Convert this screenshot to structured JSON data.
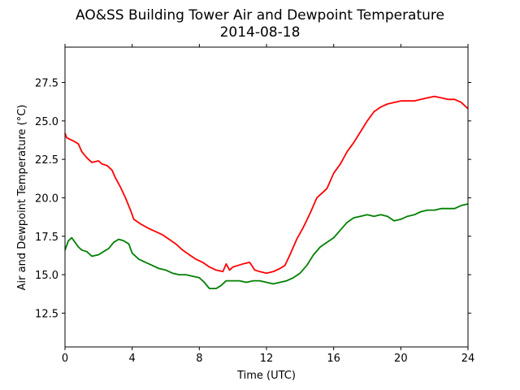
{
  "chart_data": {
    "type": "line",
    "title": "AO&SS Building Tower Air and Dewpoint Temperature",
    "subtitle": "2014-08-18",
    "xlabel": "Time (UTC)",
    "ylabel": "Air and Dewpoint Temperature (°C)",
    "xlim": [
      0,
      24
    ],
    "ylim": [
      10.3,
      29.8
    ],
    "xticks": [
      0,
      4,
      8,
      12,
      16,
      20,
      24
    ],
    "xtick_labels": [
      "0",
      "4",
      "8",
      "12",
      "16",
      "20",
      "24"
    ],
    "yticks": [
      12.5,
      15.0,
      17.5,
      20.0,
      22.5,
      25.0,
      27.5
    ],
    "ytick_labels": [
      "12.5",
      "15.0",
      "17.5",
      "20.0",
      "22.5",
      "25.0",
      "27.5"
    ],
    "grid": false,
    "colors": {
      "air": "#ff0000",
      "dewpoint": "#008000"
    },
    "series": [
      {
        "key": "air",
        "x": [
          0,
          0.1,
          0.5,
          0.8,
          1.0,
          1.3,
          1.6,
          2.0,
          2.2,
          2.5,
          2.8,
          3.0,
          3.3,
          3.6,
          3.9,
          4.1,
          4.5,
          5.0,
          5.4,
          5.8,
          6.2,
          6.6,
          7.0,
          7.4,
          7.8,
          8.2,
          8.6,
          9.0,
          9.4,
          9.6,
          9.8,
          10.0,
          10.3,
          10.6,
          11.0,
          11.3,
          11.6,
          12.0,
          12.4,
          12.8,
          13.1,
          13.4,
          13.8,
          14.2,
          14.6,
          15.0,
          15.3,
          15.6,
          16.0,
          16.4,
          16.8,
          17.2,
          17.6,
          18.0,
          18.4,
          18.8,
          19.2,
          19.6,
          20.0,
          20.4,
          20.8,
          21.2,
          21.6,
          22.0,
          22.4,
          22.8,
          23.2,
          23.6,
          24.0
        ],
        "y": [
          24.2,
          23.9,
          23.7,
          23.5,
          23.0,
          22.6,
          22.3,
          22.4,
          22.2,
          22.1,
          21.8,
          21.3,
          20.7,
          20.0,
          19.2,
          18.6,
          18.3,
          18.0,
          17.8,
          17.6,
          17.3,
          17.0,
          16.6,
          16.3,
          16.0,
          15.8,
          15.5,
          15.3,
          15.2,
          15.7,
          15.3,
          15.5,
          15.6,
          15.7,
          15.8,
          15.3,
          15.2,
          15.1,
          15.2,
          15.4,
          15.6,
          16.3,
          17.3,
          18.1,
          19.0,
          20.0,
          20.3,
          20.6,
          21.6,
          22.2,
          23.0,
          23.6,
          24.3,
          25.0,
          25.6,
          25.9,
          26.1,
          26.2,
          26.3,
          26.3,
          26.3,
          26.4,
          26.5,
          26.6,
          26.5,
          26.4,
          26.4,
          26.2,
          25.8
        ]
      },
      {
        "key": "dewpoint",
        "x": [
          0,
          0.2,
          0.4,
          0.6,
          0.8,
          1.0,
          1.3,
          1.6,
          2.0,
          2.3,
          2.6,
          2.9,
          3.2,
          3.5,
          3.8,
          4.0,
          4.4,
          4.8,
          5.2,
          5.6,
          6.0,
          6.4,
          6.8,
          7.2,
          7.6,
          8.0,
          8.3,
          8.6,
          9.0,
          9.3,
          9.6,
          10.0,
          10.4,
          10.8,
          11.2,
          11.6,
          12.0,
          12.4,
          12.8,
          13.2,
          13.6,
          14.0,
          14.4,
          14.8,
          15.2,
          15.6,
          16.0,
          16.4,
          16.8,
          17.2,
          17.6,
          18.0,
          18.4,
          18.8,
          19.2,
          19.6,
          20.0,
          20.4,
          20.8,
          21.2,
          21.6,
          22.0,
          22.4,
          22.8,
          23.2,
          23.6,
          24.0
        ],
        "y": [
          16.6,
          17.2,
          17.4,
          17.1,
          16.8,
          16.6,
          16.5,
          16.2,
          16.3,
          16.5,
          16.7,
          17.1,
          17.3,
          17.2,
          17.0,
          16.4,
          16.0,
          15.8,
          15.6,
          15.4,
          15.3,
          15.1,
          15.0,
          15.0,
          14.9,
          14.8,
          14.5,
          14.1,
          14.1,
          14.3,
          14.6,
          14.6,
          14.6,
          14.5,
          14.6,
          14.6,
          14.5,
          14.4,
          14.5,
          14.6,
          14.8,
          15.1,
          15.6,
          16.3,
          16.8,
          17.1,
          17.4,
          17.9,
          18.4,
          18.7,
          18.8,
          18.9,
          18.8,
          18.9,
          18.8,
          18.5,
          18.6,
          18.8,
          18.9,
          19.1,
          19.2,
          19.2,
          19.3,
          19.3,
          19.3,
          19.5,
          19.6
        ]
      }
    ]
  }
}
